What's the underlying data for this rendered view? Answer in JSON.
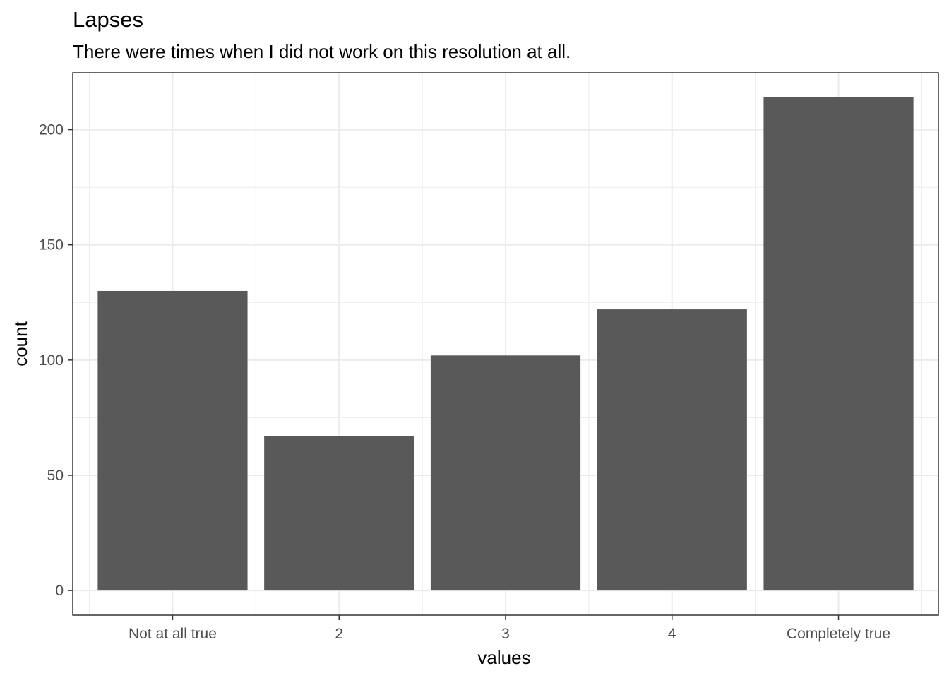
{
  "chart_data": {
    "type": "bar",
    "title": "Lapses",
    "subtitle": "There were times when I did not work on this resolution at all.",
    "xlabel": "values",
    "ylabel": "count",
    "categories": [
      "Not at all true",
      "2",
      "3",
      "4",
      "Completely true"
    ],
    "values": [
      130,
      67,
      102,
      122,
      214
    ],
    "ylim": [
      -10.7,
      224.7
    ],
    "yticks": [
      0,
      50,
      100,
      150,
      200
    ],
    "grid": true,
    "bar_color": "#595959",
    "grid_color": "#ebebeb",
    "border_color": "#333333"
  }
}
